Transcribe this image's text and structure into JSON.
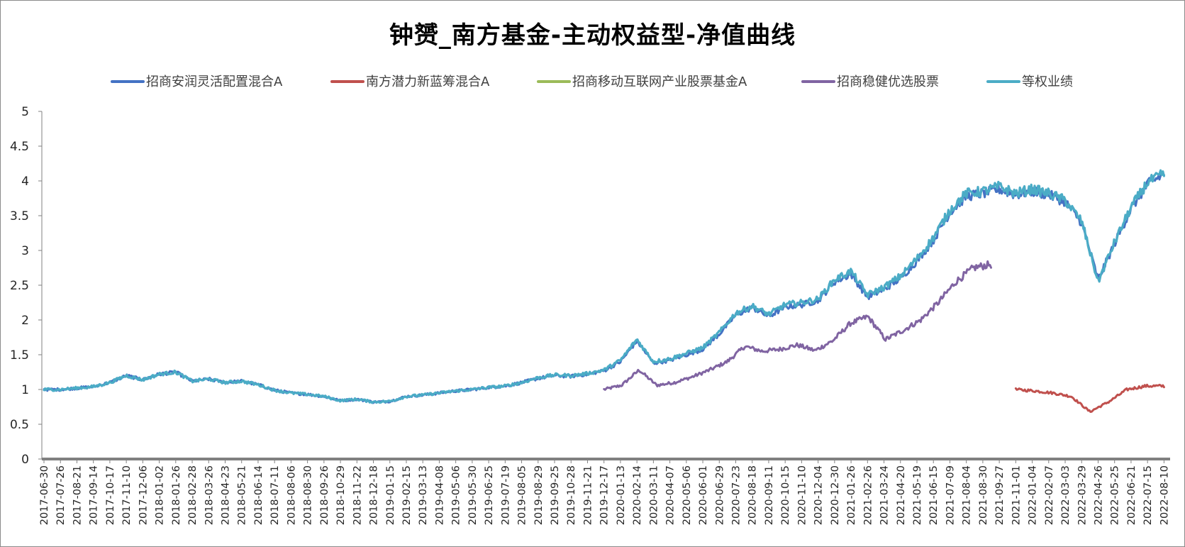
{
  "chart_data": {
    "type": "line",
    "title": "钟赟_南方基金-主动权益型-净值曲线",
    "xlabel": "",
    "ylabel": "",
    "ylim": [
      0,
      5
    ],
    "yticks": [
      "0",
      "0.5",
      "1",
      "1.5",
      "2",
      "2.5",
      "3",
      "3.5",
      "4",
      "4.5",
      "5"
    ],
    "grid": false,
    "legend_position": "top",
    "x_dates": [
      "2017-06-30",
      "2017-07-26",
      "2017-08-21",
      "2017-09-14",
      "2017-10-17",
      "2017-11-10",
      "2017-12-06",
      "2018-01-02",
      "2018-01-26",
      "2018-02-28",
      "2018-03-26",
      "2018-04-23",
      "2018-05-21",
      "2018-06-14",
      "2018-07-11",
      "2018-08-06",
      "2018-08-30",
      "2018-09-26",
      "2018-10-29",
      "2018-11-22",
      "2018-12-18",
      "2019-01-15",
      "2019-02-15",
      "2019-03-13",
      "2019-04-08",
      "2019-05-06",
      "2019-05-30",
      "2019-06-25",
      "2019-07-19",
      "2019-08-05",
      "2019-08-29",
      "2019-09-25",
      "2019-10-28",
      "2019-11-21",
      "2019-12-17",
      "2020-01-13",
      "2020-02-14",
      "2020-03-11",
      "2020-04-07",
      "2020-05-06",
      "2020-06-01",
      "2020-06-29",
      "2020-07-23",
      "2020-08-18",
      "2020-09-11",
      "2020-10-15",
      "2020-11-10",
      "2020-12-04",
      "2020-12-30",
      "2021-01-26",
      "2021-02-26",
      "2021-03-24",
      "2021-04-20",
      "2021-05-19",
      "2021-06-15",
      "2021-07-09",
      "2021-08-04",
      "2021-08-30",
      "2021-09-27",
      "2021-11-01",
      "2022-01-04",
      "2022-02-07",
      "2022-03-03",
      "2022-03-29",
      "2022-04-26",
      "2022-05-25",
      "2022-06-21",
      "2022-07-15",
      "2022-08-10"
    ],
    "series": [
      {
        "name": "招商安润灵活配置混合A",
        "color": "#4472c4",
        "start": 0,
        "end": 68,
        "values": [
          1.0,
          1.0,
          1.02,
          1.04,
          1.1,
          1.2,
          1.14,
          1.22,
          1.25,
          1.12,
          1.15,
          1.1,
          1.12,
          1.07,
          0.99,
          0.95,
          0.93,
          0.9,
          0.84,
          0.86,
          0.82,
          0.83,
          0.9,
          0.92,
          0.95,
          0.98,
          1.0,
          1.03,
          1.05,
          1.1,
          1.16,
          1.2,
          1.19,
          1.22,
          1.27,
          1.4,
          1.7,
          1.38,
          1.42,
          1.5,
          1.58,
          1.8,
          2.07,
          2.18,
          2.05,
          2.19,
          2.22,
          2.28,
          2.55,
          2.66,
          2.33,
          2.44,
          2.6,
          2.85,
          3.15,
          3.55,
          3.78,
          3.82,
          3.88,
          3.8,
          3.85,
          3.8,
          3.7,
          3.4,
          2.58,
          3.1,
          3.6,
          3.95,
          4.1
        ]
      },
      {
        "name": "南方潜力新蓝筹混合A",
        "color": "#c0504d",
        "start": 59,
        "end": 68,
        "values": [
          1.0,
          0.98,
          0.95,
          0.9,
          0.68,
          0.82,
          1.0,
          1.05,
          1.05
        ]
      },
      {
        "name": "招商移动互联网产业股票基金A",
        "color": "#9bbb59",
        "start": 35,
        "end": 68,
        "values": []
      },
      {
        "name": "招商稳健优选股票",
        "color": "#8064a2",
        "start": 34,
        "end": 57.5,
        "values": [
          1.0,
          1.06,
          1.28,
          1.06,
          1.1,
          1.18,
          1.28,
          1.4,
          1.62,
          1.55,
          1.58,
          1.64,
          1.56,
          1.7,
          1.95,
          2.05,
          1.72,
          1.85,
          2.0,
          2.25,
          2.55,
          2.75,
          2.8
        ]
      },
      {
        "name": "等权业绩",
        "color": "#4bacc6",
        "start": 0,
        "end": 68,
        "values": [
          1.0,
          1.0,
          1.02,
          1.04,
          1.1,
          1.2,
          1.14,
          1.22,
          1.25,
          1.12,
          1.15,
          1.1,
          1.12,
          1.07,
          0.99,
          0.95,
          0.93,
          0.9,
          0.84,
          0.86,
          0.82,
          0.83,
          0.9,
          0.92,
          0.95,
          0.98,
          1.0,
          1.03,
          1.05,
          1.1,
          1.17,
          1.21,
          1.2,
          1.23,
          1.28,
          1.42,
          1.72,
          1.4,
          1.44,
          1.52,
          1.6,
          1.82,
          2.1,
          2.2,
          2.08,
          2.22,
          2.25,
          2.3,
          2.58,
          2.7,
          2.36,
          2.47,
          2.63,
          2.88,
          3.18,
          3.58,
          3.82,
          3.85,
          3.92,
          3.82,
          3.88,
          3.82,
          3.72,
          3.42,
          2.55,
          3.12,
          3.62,
          3.98,
          4.1
        ]
      }
    ]
  }
}
